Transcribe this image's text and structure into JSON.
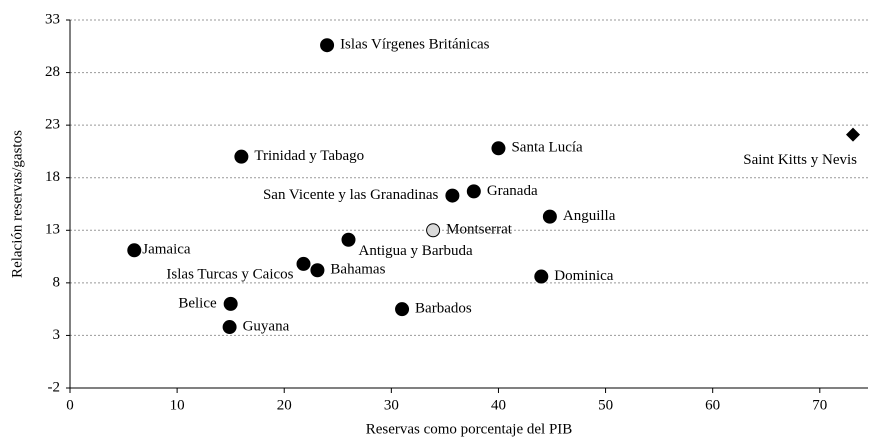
{
  "chart_data": {
    "type": "scatter",
    "xlabel": "Reservas como porcentaje del PIB",
    "ylabel": "Relación reservas/gastos",
    "xlim": [
      0,
      74.5
    ],
    "xticks": [
      0,
      10,
      20,
      30,
      40,
      50,
      60,
      70
    ],
    "ylim": [
      -2,
      33
    ],
    "yticks": [
      -2,
      3,
      8,
      13,
      18,
      23,
      28,
      33
    ],
    "grid": true,
    "points": [
      {
        "label": "Islas Vírgenes Británicas",
        "x": 24.0,
        "y": 30.6,
        "marker": "circle",
        "color": "#000000"
      },
      {
        "label": "Trinidad y Tabago",
        "x": 16.0,
        "y": 20.0,
        "marker": "circle",
        "color": "#000000"
      },
      {
        "label": "Santa Lucía",
        "x": 40.0,
        "y": 20.8,
        "marker": "circle",
        "color": "#000000"
      },
      {
        "label": "Saint Kitts y Nevis",
        "x": 73.1,
        "y": 22.1,
        "marker": "diamond",
        "color": "#000000"
      },
      {
        "label": "San Vicente y las Granadinas",
        "x": 35.7,
        "y": 16.3,
        "marker": "circle",
        "color": "#000000"
      },
      {
        "label": "Granada",
        "x": 37.7,
        "y": 16.7,
        "marker": "circle",
        "color": "#000000"
      },
      {
        "label": "Anguilla",
        "x": 44.8,
        "y": 14.3,
        "marker": "circle",
        "color": "#000000"
      },
      {
        "label": "Montserrat",
        "x": 33.9,
        "y": 13.0,
        "marker": "circle",
        "color": "#d9d9d9"
      },
      {
        "label": "Antigua y Barbuda",
        "x": 26.0,
        "y": 12.1,
        "marker": "circle",
        "color": "#000000"
      },
      {
        "label": "Jamaica",
        "x": 6.0,
        "y": 11.1,
        "marker": "circle",
        "color": "#000000"
      },
      {
        "label": "Islas Turcas y Caicos",
        "x": 21.8,
        "y": 9.8,
        "marker": "circle",
        "color": "#000000"
      },
      {
        "label": "Bahamas",
        "x": 23.1,
        "y": 9.2,
        "marker": "circle",
        "color": "#000000"
      },
      {
        "label": "Dominica",
        "x": 44.0,
        "y": 8.6,
        "marker": "circle",
        "color": "#000000"
      },
      {
        "label": "Belice",
        "x": 15.0,
        "y": 6.0,
        "marker": "circle",
        "color": "#000000"
      },
      {
        "label": "Barbados",
        "x": 31.0,
        "y": 5.5,
        "marker": "circle",
        "color": "#000000"
      },
      {
        "label": "Guyana",
        "x": 14.9,
        "y": 3.8,
        "marker": "circle",
        "color": "#000000"
      }
    ]
  }
}
